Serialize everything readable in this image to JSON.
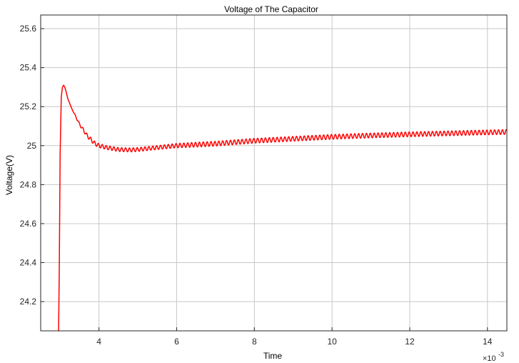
{
  "chart_data": {
    "type": "line",
    "title": "Voltage of The Capacitor",
    "xlabel": "Time",
    "ylabel": "Voltage(V)",
    "x_exponent_label": "×10",
    "x_exponent_power": "-3",
    "xlim": [
      2.5,
      14.5
    ],
    "ylim": [
      24.05,
      25.67
    ],
    "x_ticks": [
      4,
      6,
      8,
      10,
      12,
      14
    ],
    "y_ticks": [
      24.2,
      24.4,
      24.6,
      24.8,
      25,
      25.2,
      25.4,
      25.6
    ],
    "x_tick_labels": [
      "4",
      "6",
      "8",
      "10",
      "12",
      "14"
    ],
    "y_tick_labels": [
      "24.2",
      "24.4",
      "24.6",
      "24.8",
      "25",
      "25.2",
      "25.4",
      "25.6"
    ],
    "grid": true,
    "colors": {
      "series": "#ff0000",
      "grid": "#c8c8c8",
      "axis": "#262626"
    },
    "series": [
      {
        "x": [
          2.96,
          2.98,
          3.0,
          3.03,
          3.06,
          3.09,
          3.12,
          3.15,
          3.2,
          3.3,
          3.4,
          3.5,
          3.6,
          3.7,
          3.8,
          3.9,
          4.0,
          4.2,
          4.5,
          4.8,
          5.0,
          5.5,
          6.0,
          6.5,
          7.0,
          8.0,
          9.0,
          10.0,
          11.0,
          12.0,
          13.0,
          14.0,
          14.5
        ],
        "y": [
          24.03,
          24.4,
          24.95,
          25.25,
          25.3,
          25.31,
          25.3,
          25.28,
          25.24,
          25.19,
          25.15,
          25.11,
          25.08,
          25.05,
          25.03,
          25.01,
          25.0,
          24.99,
          24.98,
          24.978,
          24.98,
          24.99,
          25.0,
          25.005,
          25.01,
          25.025,
          25.035,
          25.045,
          25.052,
          25.058,
          25.063,
          25.068,
          25.07
        ],
        "ripple_amplitude": [
          0,
          0,
          0,
          0,
          0,
          0,
          0,
          0,
          0,
          0,
          0.004,
          0.006,
          0.008,
          0.009,
          0.01,
          0.01,
          0.01,
          0.01,
          0.01,
          0.01,
          0.01,
          0.01,
          0.011,
          0.012,
          0.012,
          0.012,
          0.012,
          0.012,
          0.012,
          0.012,
          0.012,
          0.012,
          0.012
        ],
        "ripple_period": 0.1
      }
    ]
  }
}
